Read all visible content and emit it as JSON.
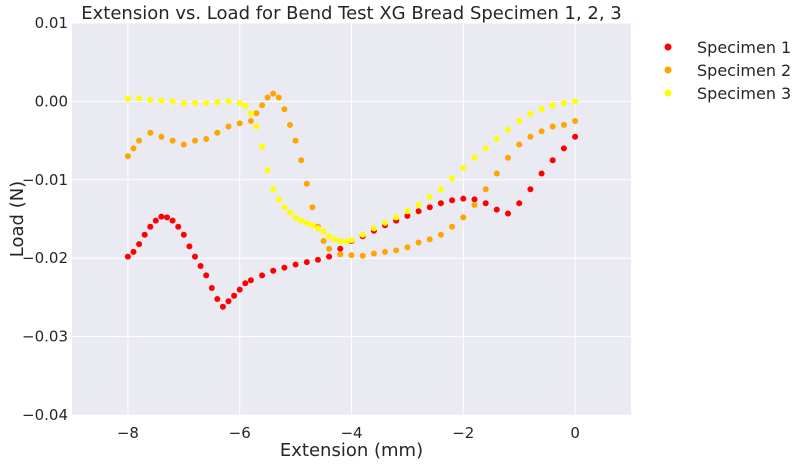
{
  "chart_data": {
    "type": "scatter",
    "title": "Extension vs. Load for Bend Test XG Bread Specimen 1, 2, 3",
    "xlabel": "Extension (mm)",
    "ylabel": "Load (N)",
    "xlim": [
      -9,
      1
    ],
    "ylim": [
      -0.04,
      0.01
    ],
    "xticks": [
      -8,
      -6,
      -4,
      -2,
      0
    ],
    "xtick_labels": [
      "−8",
      "−6",
      "−4",
      "−2",
      "0"
    ],
    "yticks": [
      -0.04,
      -0.03,
      -0.02,
      -0.01,
      0.0,
      0.01
    ],
    "ytick_labels": [
      "−0.04",
      "−0.03",
      "−0.02",
      "−0.01",
      "0.00",
      "0.01"
    ],
    "grid": true,
    "background": "#eaeaf2",
    "legend_position": "outside-top-right",
    "series": [
      {
        "name": "Specimen 1",
        "color": "#ff0000",
        "points": [
          [
            -8.0,
            -0.0198
          ],
          [
            -7.9,
            -0.0192
          ],
          [
            -7.8,
            -0.0182
          ],
          [
            -7.7,
            -0.017
          ],
          [
            -7.6,
            -0.016
          ],
          [
            -7.5,
            -0.0152
          ],
          [
            -7.4,
            -0.0147
          ],
          [
            -7.3,
            -0.0148
          ],
          [
            -7.2,
            -0.0152
          ],
          [
            -7.1,
            -0.016
          ],
          [
            -7.0,
            -0.017
          ],
          [
            -6.9,
            -0.0185
          ],
          [
            -6.8,
            -0.0198
          ],
          [
            -6.7,
            -0.021
          ],
          [
            -6.6,
            -0.0222
          ],
          [
            -6.5,
            -0.0238
          ],
          [
            -6.4,
            -0.0252
          ],
          [
            -6.3,
            -0.0262
          ],
          [
            -6.2,
            -0.0255
          ],
          [
            -6.1,
            -0.0248
          ],
          [
            -6.0,
            -0.024
          ],
          [
            -5.9,
            -0.0232
          ],
          [
            -5.8,
            -0.0228
          ],
          [
            -5.6,
            -0.0222
          ],
          [
            -5.4,
            -0.0216
          ],
          [
            -5.2,
            -0.0212
          ],
          [
            -5.0,
            -0.0208
          ],
          [
            -4.8,
            -0.0205
          ],
          [
            -4.6,
            -0.0202
          ],
          [
            -4.4,
            -0.0198
          ],
          [
            -4.2,
            -0.0188
          ],
          [
            -4.0,
            -0.0178
          ],
          [
            -3.8,
            -0.0172
          ],
          [
            -3.6,
            -0.0165
          ],
          [
            -3.4,
            -0.0158
          ],
          [
            -3.2,
            -0.0152
          ],
          [
            -3.0,
            -0.0146
          ],
          [
            -2.8,
            -0.014
          ],
          [
            -2.6,
            -0.0135
          ],
          [
            -2.4,
            -0.013
          ],
          [
            -2.2,
            -0.0126
          ],
          [
            -2.0,
            -0.0124
          ],
          [
            -1.8,
            -0.0125
          ],
          [
            -1.6,
            -0.013
          ],
          [
            -1.4,
            -0.0138
          ],
          [
            -1.2,
            -0.0143
          ],
          [
            -1.0,
            -0.013
          ],
          [
            -0.8,
            -0.0112
          ],
          [
            -0.6,
            -0.0092
          ],
          [
            -0.4,
            -0.0075
          ],
          [
            -0.2,
            -0.006
          ],
          [
            0.0,
            -0.0045
          ]
        ]
      },
      {
        "name": "Specimen 2",
        "color": "#ffa500",
        "points": [
          [
            -8.0,
            -0.007
          ],
          [
            -7.9,
            -0.006
          ],
          [
            -7.8,
            -0.005
          ],
          [
            -7.6,
            -0.004
          ],
          [
            -7.4,
            -0.0045
          ],
          [
            -7.2,
            -0.005
          ],
          [
            -7.0,
            -0.0055
          ],
          [
            -6.8,
            -0.005
          ],
          [
            -6.6,
            -0.0048
          ],
          [
            -6.4,
            -0.004
          ],
          [
            -6.2,
            -0.0032
          ],
          [
            -6.0,
            -0.0028
          ],
          [
            -5.8,
            -0.0025
          ],
          [
            -5.7,
            -0.0015
          ],
          [
            -5.6,
            -0.0005
          ],
          [
            -5.5,
            0.0005
          ],
          [
            -5.4,
            0.001
          ],
          [
            -5.3,
            0.0005
          ],
          [
            -5.2,
            -0.001
          ],
          [
            -5.1,
            -0.003
          ],
          [
            -5.0,
            -0.005
          ],
          [
            -4.9,
            -0.0075
          ],
          [
            -4.8,
            -0.0105
          ],
          [
            -4.7,
            -0.0135
          ],
          [
            -4.6,
            -0.016
          ],
          [
            -4.5,
            -0.0178
          ],
          [
            -4.4,
            -0.0188
          ],
          [
            -4.2,
            -0.0195
          ],
          [
            -4.0,
            -0.0196
          ],
          [
            -3.8,
            -0.0197
          ],
          [
            -3.6,
            -0.0194
          ],
          [
            -3.4,
            -0.0192
          ],
          [
            -3.2,
            -0.019
          ],
          [
            -3.0,
            -0.0186
          ],
          [
            -2.8,
            -0.018
          ],
          [
            -2.6,
            -0.0176
          ],
          [
            -2.4,
            -0.017
          ],
          [
            -2.2,
            -0.016
          ],
          [
            -2.0,
            -0.0148
          ],
          [
            -1.8,
            -0.0132
          ],
          [
            -1.6,
            -0.0112
          ],
          [
            -1.4,
            -0.0092
          ],
          [
            -1.2,
            -0.0072
          ],
          [
            -1.0,
            -0.0055
          ],
          [
            -0.8,
            -0.0045
          ],
          [
            -0.6,
            -0.0038
          ],
          [
            -0.4,
            -0.0032
          ],
          [
            -0.2,
            -0.003
          ],
          [
            0.0,
            -0.0025
          ]
        ]
      },
      {
        "name": "Specimen 3",
        "color": "#ffff00",
        "points": [
          [
            -8.0,
            0.0003
          ],
          [
            -7.8,
            0.0004
          ],
          [
            -7.6,
            0.0002
          ],
          [
            -7.4,
            0.0001
          ],
          [
            -7.2,
            0.0
          ],
          [
            -7.0,
            -0.0002
          ],
          [
            -6.8,
            -0.0002
          ],
          [
            -6.6,
            -0.0002
          ],
          [
            -6.4,
            -0.0001
          ],
          [
            -6.2,
            0.0
          ],
          [
            -6.0,
            -0.0002
          ],
          [
            -5.9,
            -0.0006
          ],
          [
            -5.8,
            -0.0015
          ],
          [
            -5.7,
            -0.0032
          ],
          [
            -5.6,
            -0.0058
          ],
          [
            -5.5,
            -0.0088
          ],
          [
            -5.4,
            -0.0112
          ],
          [
            -5.3,
            -0.0125
          ],
          [
            -5.2,
            -0.0135
          ],
          [
            -5.1,
            -0.0142
          ],
          [
            -5.0,
            -0.0148
          ],
          [
            -4.9,
            -0.0152
          ],
          [
            -4.8,
            -0.0155
          ],
          [
            -4.7,
            -0.0158
          ],
          [
            -4.6,
            -0.0162
          ],
          [
            -4.5,
            -0.0166
          ],
          [
            -4.4,
            -0.0172
          ],
          [
            -4.3,
            -0.0176
          ],
          [
            -4.2,
            -0.0178
          ],
          [
            -4.1,
            -0.0179
          ],
          [
            -4.0,
            -0.0177
          ],
          [
            -3.8,
            -0.017
          ],
          [
            -3.6,
            -0.0162
          ],
          [
            -3.4,
            -0.0155
          ],
          [
            -3.2,
            -0.0148
          ],
          [
            -3.0,
            -0.014
          ],
          [
            -2.8,
            -0.0132
          ],
          [
            -2.6,
            -0.0122
          ],
          [
            -2.4,
            -0.0112
          ],
          [
            -2.2,
            -0.0098
          ],
          [
            -2.0,
            -0.0085
          ],
          [
            -1.8,
            -0.0072
          ],
          [
            -1.6,
            -0.006
          ],
          [
            -1.4,
            -0.0048
          ],
          [
            -1.2,
            -0.0036
          ],
          [
            -1.0,
            -0.0025
          ],
          [
            -0.8,
            -0.0016
          ],
          [
            -0.6,
            -0.001
          ],
          [
            -0.4,
            -0.0005
          ],
          [
            -0.2,
            -0.0002
          ],
          [
            0.0,
            0.0
          ]
        ]
      }
    ]
  }
}
